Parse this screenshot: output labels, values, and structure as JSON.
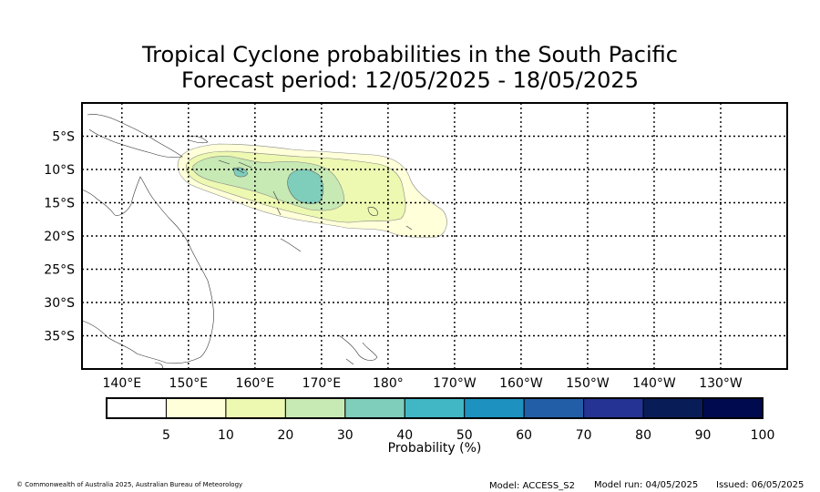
{
  "title": {
    "line1": "Tropical Cyclone probabilities in the South Pacific",
    "line2": "Forecast period: 12/05/2025 - 18/05/2025"
  },
  "map": {
    "lon_range": [
      134,
      240
    ],
    "lat_range": [
      -40,
      0
    ],
    "grid": true,
    "lat_ticks": [
      {
        "lat": -5,
        "label": "5°S"
      },
      {
        "lat": -10,
        "label": "10°S"
      },
      {
        "lat": -15,
        "label": "15°S"
      },
      {
        "lat": -20,
        "label": "20°S"
      },
      {
        "lat": -25,
        "label": "25°S"
      },
      {
        "lat": -30,
        "label": "30°S"
      },
      {
        "lat": -35,
        "label": "35°S"
      }
    ],
    "lon_ticks": [
      {
        "lon": 140,
        "label": "140°E"
      },
      {
        "lon": 150,
        "label": "150°E"
      },
      {
        "lon": 160,
        "label": "160°E"
      },
      {
        "lon": 170,
        "label": "170°E"
      },
      {
        "lon": 180,
        "label": "180°"
      },
      {
        "lon": 190,
        "label": "170°W"
      },
      {
        "lon": 200,
        "label": "160°W"
      },
      {
        "lon": 210,
        "label": "150°W"
      },
      {
        "lon": 220,
        "label": "140°W"
      },
      {
        "lon": 230,
        "label": "130°W"
      }
    ]
  },
  "colorbar": {
    "label": "Probability (%)",
    "ticks": [
      "5",
      "10",
      "20",
      "30",
      "40",
      "50",
      "60",
      "70",
      "80",
      "90",
      "100"
    ],
    "colors": [
      "#ffffff",
      "#ffffd9",
      "#edf8b1",
      "#c7e9b4",
      "#7fcdbb",
      "#41b6c4",
      "#1d91c0",
      "#225ea8",
      "#253494",
      "#081d58",
      "#000a4f"
    ]
  },
  "footer": {
    "copyright": "© Commonwealth of Australia 2025, Australian Bureau of Meteorology",
    "model": "Model: ACCESS_S2",
    "model_run": "Model run: 04/05/2025",
    "issued": "Issued: 06/05/2025"
  }
}
